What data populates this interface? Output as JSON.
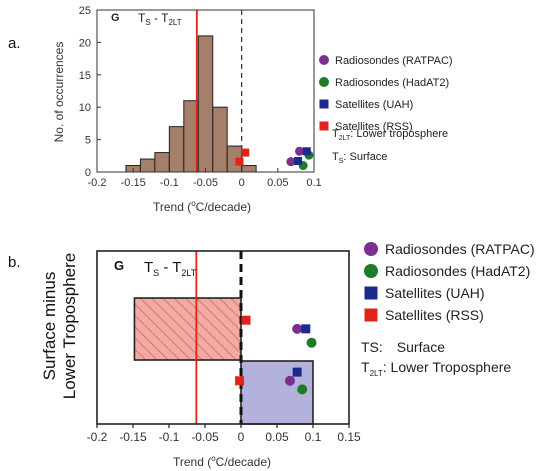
{
  "chart_data": [
    {
      "type": "bar",
      "panel_label": "a.",
      "annotation": "G",
      "title_main": "T",
      "title_sub1": "S",
      "title_dash": " - T",
      "title_sub2": "2LT",
      "xlabel_pre": "Trend (",
      "xlabel_sup": "o",
      "xlabel_post": "C/decade)",
      "ylabel": "No. of occurrences",
      "xlim": [
        -0.2,
        0.1
      ],
      "ylim": [
        0,
        25
      ],
      "xticks": [
        "-0.2",
        "-0.15",
        "-0.1",
        "-0.05",
        "0",
        "0.05",
        "0.1"
      ],
      "yticks": [
        "0",
        "5",
        "10",
        "15",
        "20",
        "25"
      ],
      "bin_edges": [
        -0.16,
        -0.14,
        -0.12,
        -0.1,
        -0.08,
        -0.06,
        -0.04,
        -0.02,
        0.0,
        0.02
      ],
      "counts": [
        1,
        2,
        3,
        7,
        11,
        21,
        10,
        4,
        1
      ],
      "bar_color": "#a57f6a",
      "red_line_x": -0.062,
      "dashed_zero_x": 0.0,
      "points": [
        {
          "series": "RATPAC",
          "x": 0.08,
          "y": 3.2
        },
        {
          "series": "RATPAC",
          "x": 0.068,
          "y": 1.6
        },
        {
          "series": "HadAT2",
          "x": 0.093,
          "y": 2.6
        },
        {
          "series": "HadAT2",
          "x": 0.085,
          "y": 1.0
        },
        {
          "series": "UAH",
          "x": 0.09,
          "y": 3.2
        },
        {
          "series": "UAH",
          "x": 0.078,
          "y": 1.7
        },
        {
          "series": "RSS",
          "x": 0.005,
          "y": 3.0
        },
        {
          "series": "RSS",
          "x": -0.003,
          "y": 1.6
        }
      ],
      "legend": [
        {
          "key": "RATPAC",
          "label": "Radiosondes (RATPAC)",
          "color": "#7b2f8e",
          "shape": "circle"
        },
        {
          "key": "HadAT2",
          "label": "Radiosondes (HadAT2)",
          "color": "#1f7a2a",
          "shape": "circle"
        },
        {
          "key": "UAH",
          "label": "Satellites (UAH)",
          "color": "#1c2a8c",
          "shape": "square"
        },
        {
          "key": "RSS",
          "label": "Satellites (RSS)",
          "color": "#e2231a",
          "shape": "square"
        }
      ],
      "notes": [
        {
          "main": "T",
          "sub": "2LT",
          "text": ": Lower troposphere"
        },
        {
          "main": "T",
          "sub": "S",
          "text": ": Surface"
        }
      ]
    },
    {
      "type": "bar",
      "panel_label": "b.",
      "annotation": "G",
      "title_main": "T",
      "title_sub1": "S",
      "title_dash": " - T",
      "title_sub2": "2LT",
      "xlabel_pre": "Trend (",
      "xlabel_sup": "o",
      "xlabel_post": "C/decade)",
      "ylabel_line1": "Surface minus",
      "ylabel_line2": "Lower Troposphere",
      "xlim": [
        -0.2,
        0.15
      ],
      "xticks": [
        "-0.2",
        "-0.15",
        "-0.1",
        "-0.05",
        "0",
        "0.05",
        "0.1",
        "0.15"
      ],
      "model_range": {
        "min": -0.148,
        "max": 0.0,
        "fill": "#f2aaa4",
        "hatch": "#d15b55"
      },
      "obs_range": {
        "min": 0.0,
        "max": 0.1,
        "fill": "#b3b2dc"
      },
      "red_line_x": -0.062,
      "dashed_zero_x": 0.0,
      "points": [
        {
          "series": "RATPAC",
          "x": 0.078,
          "y": 0.55
        },
        {
          "series": "RATPAC",
          "x": 0.068,
          "y": 0.25
        },
        {
          "series": "HadAT2",
          "x": 0.098,
          "y": 0.47
        },
        {
          "series": "HadAT2",
          "x": 0.085,
          "y": 0.2
        },
        {
          "series": "UAH",
          "x": 0.09,
          "y": 0.55
        },
        {
          "series": "UAH",
          "x": 0.078,
          "y": 0.3
        },
        {
          "series": "RSS",
          "x": 0.007,
          "y": 0.6
        },
        {
          "series": "RSS",
          "x": -0.002,
          "y": 0.25
        }
      ],
      "legend": [
        {
          "key": "RATPAC",
          "label": "Radiosondes (RATPAC)",
          "color": "#7b2f8e",
          "shape": "circle"
        },
        {
          "key": "HadAT2",
          "label": "Radiosondes (HadAT2)",
          "color": "#1f7a2a",
          "shape": "circle"
        },
        {
          "key": "UAH",
          "label": "Satellites (UAH)",
          "color": "#1c2a8c",
          "shape": "square"
        },
        {
          "key": "RSS",
          "label": "Satellites (RSS)",
          "color": "#e2231a",
          "shape": "square"
        }
      ],
      "notes": [
        {
          "main": "TS:",
          "sub": "",
          "text": "Surface"
        },
        {
          "main": "T",
          "sub": "2LT",
          "text": ":   Lower Troposphere"
        }
      ]
    }
  ]
}
